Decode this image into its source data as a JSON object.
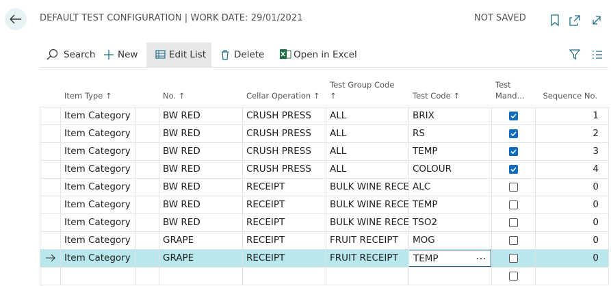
{
  "header": {
    "title": "DEFAULT TEST CONFIGURATION | WORK DATE: 29/01/2021",
    "status": "NOT SAVED"
  },
  "toolbar": {
    "search": "Search",
    "new": "New",
    "edit_list": "Edit List",
    "delete": "Delete",
    "open_in_excel": "Open in Excel"
  },
  "table": {
    "columns": [
      {
        "key": "item_type",
        "lines": [
          "Item Type ↑"
        ]
      },
      {
        "key": "no",
        "lines": [
          "No. ↑"
        ]
      },
      {
        "key": "cellar_operation",
        "lines": [
          "Cellar Operation ↑"
        ]
      },
      {
        "key": "test_group_code",
        "lines": [
          "Test Group Code",
          "↑"
        ]
      },
      {
        "key": "test_code",
        "lines": [
          "Test Code ↑"
        ]
      },
      {
        "key": "test_mandatory",
        "lines": [
          "Test",
          "Mand..."
        ]
      },
      {
        "key": "sequence_no",
        "lines": [
          "Sequence No."
        ]
      }
    ],
    "rows": [
      {
        "item_type": "Item Category",
        "no": "BW RED",
        "cellar_operation": "CRUSH PRESS",
        "test_group_code": "ALL",
        "test_code": "BRIX",
        "test_mandatory": true,
        "sequence_no": 1
      },
      {
        "item_type": "Item Category",
        "no": "BW RED",
        "cellar_operation": "CRUSH PRESS",
        "test_group_code": "ALL",
        "test_code": "RS",
        "test_mandatory": true,
        "sequence_no": 2
      },
      {
        "item_type": "Item Category",
        "no": "BW RED",
        "cellar_operation": "CRUSH PRESS",
        "test_group_code": "ALL",
        "test_code": "TEMP",
        "test_mandatory": true,
        "sequence_no": 3
      },
      {
        "item_type": "Item Category",
        "no": "BW RED",
        "cellar_operation": "CRUSH PRESS",
        "test_group_code": "ALL",
        "test_code": "COLOUR",
        "test_mandatory": true,
        "sequence_no": 4
      },
      {
        "item_type": "Item Category",
        "no": "BW RED",
        "cellar_operation": "RECEIPT",
        "test_group_code": "BULK WINE RECE...",
        "test_code": "ALC",
        "test_mandatory": false,
        "sequence_no": 0
      },
      {
        "item_type": "Item Category",
        "no": "BW RED",
        "cellar_operation": "RECEIPT",
        "test_group_code": "BULK WINE RECE...",
        "test_code": "TEMP",
        "test_mandatory": false,
        "sequence_no": 0
      },
      {
        "item_type": "Item Category",
        "no": "BW RED",
        "cellar_operation": "RECEIPT",
        "test_group_code": "BULK WINE RECE...",
        "test_code": "TSO2",
        "test_mandatory": false,
        "sequence_no": 0
      },
      {
        "item_type": "Item Category",
        "no": "GRAPE",
        "cellar_operation": "RECEIPT",
        "test_group_code": "FRUIT RECEIPT",
        "test_code": "MOG",
        "test_mandatory": false,
        "sequence_no": 0
      },
      {
        "item_type": "Item Category",
        "no": "GRAPE",
        "cellar_operation": "RECEIPT",
        "test_group_code": "FRUIT RECEIPT",
        "test_code": "TEMP",
        "test_mandatory": false,
        "sequence_no": 0,
        "selected": true
      },
      {
        "test_mandatory": false
      }
    ]
  }
}
